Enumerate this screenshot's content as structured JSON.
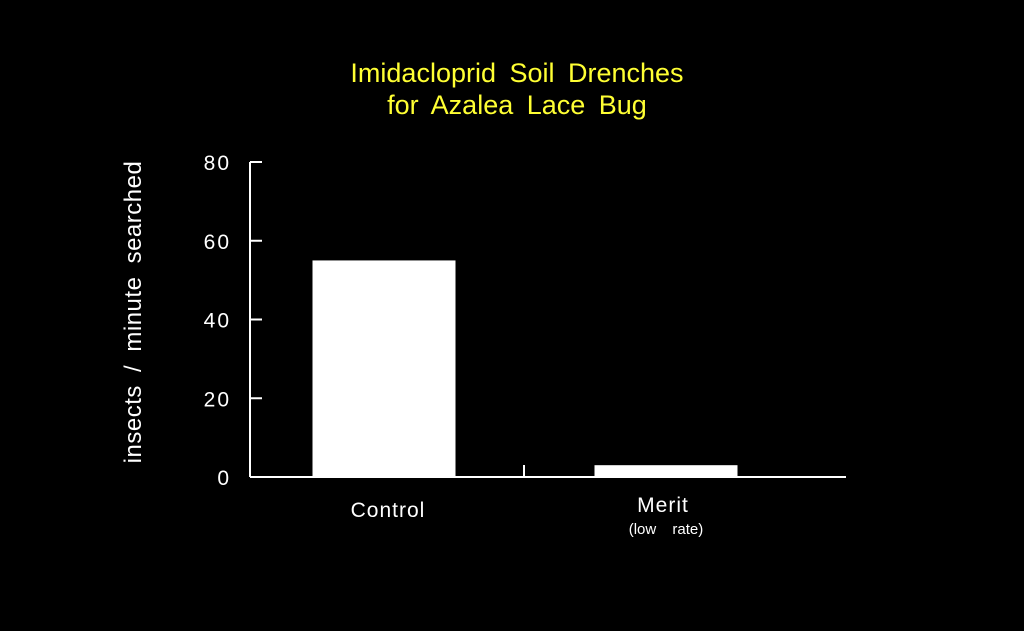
{
  "chart_data": {
    "type": "bar",
    "title": [
      "Imidacloprid  Soil  Drenches",
      "for  Azalea  Lace  Bug"
    ],
    "xlabel": "",
    "ylabel": "insects  /  minute  searched",
    "categories": [
      "Control",
      "Merit"
    ],
    "category_sublabels": [
      "",
      "(low  rate)"
    ],
    "values": [
      55,
      3
    ],
    "ylim": [
      0,
      80
    ],
    "yticks": [
      0,
      20,
      40,
      60,
      80
    ],
    "grid": false,
    "legend": "none",
    "colors": {
      "background": "#000000",
      "title": "#ffff33",
      "bars": "#ffffff",
      "axes": "#ffffff"
    }
  }
}
